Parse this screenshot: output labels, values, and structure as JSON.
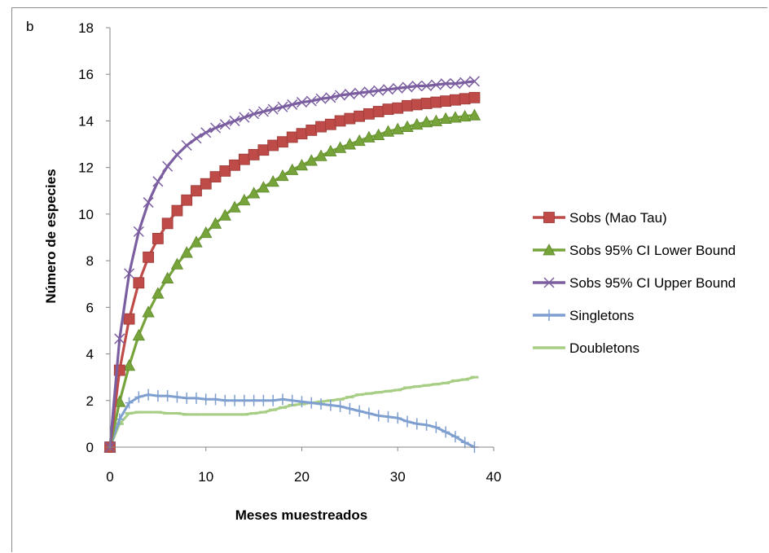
{
  "chart_data": {
    "type": "line",
    "panel_label": "b",
    "xlabel": "Meses muestreados",
    "ylabel": "Número de especies",
    "xlim": [
      0,
      40
    ],
    "ylim": [
      0,
      18
    ],
    "x_ticks": [
      "0",
      "10",
      "20",
      "30",
      "40"
    ],
    "y_ticks": [
      "0",
      "2",
      "4",
      "6",
      "8",
      "10",
      "12",
      "14",
      "16",
      "18"
    ],
    "grid": false,
    "legend_position": "right",
    "x": [
      0,
      1,
      2,
      3,
      4,
      5,
      6,
      7,
      8,
      9,
      10,
      11,
      12,
      13,
      14,
      15,
      16,
      17,
      18,
      19,
      20,
      21,
      22,
      23,
      24,
      25,
      26,
      27,
      28,
      29,
      30,
      31,
      32,
      33,
      34,
      35,
      36,
      37,
      38
    ],
    "series": [
      {
        "name": "Sobs (Mao Tau)",
        "color": "#be4b48",
        "marker": "square",
        "values": [
          0,
          3.3,
          5.5,
          7.05,
          8.15,
          8.95,
          9.6,
          10.15,
          10.6,
          11.0,
          11.3,
          11.6,
          11.85,
          12.1,
          12.35,
          12.55,
          12.75,
          12.95,
          13.1,
          13.3,
          13.45,
          13.6,
          13.75,
          13.85,
          14.0,
          14.1,
          14.2,
          14.3,
          14.4,
          14.5,
          14.55,
          14.65,
          14.7,
          14.75,
          14.8,
          14.85,
          14.9,
          14.95,
          15.0
        ]
      },
      {
        "name": "Sobs 95% CI Lower Bound",
        "color": "#77a33b",
        "marker": "triangle",
        "values": [
          0,
          1.95,
          3.5,
          4.8,
          5.8,
          6.6,
          7.25,
          7.85,
          8.35,
          8.8,
          9.2,
          9.6,
          9.95,
          10.3,
          10.6,
          10.9,
          11.15,
          11.4,
          11.65,
          11.9,
          12.1,
          12.3,
          12.5,
          12.7,
          12.85,
          13.0,
          13.15,
          13.3,
          13.4,
          13.55,
          13.65,
          13.75,
          13.85,
          13.95,
          14.0,
          14.1,
          14.15,
          14.2,
          14.25
        ]
      },
      {
        "name": "Sobs 95% CI Upper Bound",
        "color": "#7b5ea0",
        "marker": "x",
        "values": [
          0,
          4.65,
          7.45,
          9.25,
          10.5,
          11.4,
          12.05,
          12.55,
          12.95,
          13.25,
          13.5,
          13.7,
          13.85,
          14.0,
          14.15,
          14.3,
          14.4,
          14.5,
          14.6,
          14.7,
          14.8,
          14.85,
          14.95,
          15.0,
          15.1,
          15.15,
          15.2,
          15.25,
          15.3,
          15.35,
          15.4,
          15.45,
          15.5,
          15.5,
          15.55,
          15.6,
          15.6,
          15.65,
          15.7
        ]
      },
      {
        "name": "Singletons",
        "color": "#7e9fd0",
        "marker": "plus",
        "values": [
          0,
          1.2,
          1.9,
          2.15,
          2.25,
          2.2,
          2.2,
          2.15,
          2.1,
          2.1,
          2.05,
          2.05,
          2.0,
          2.0,
          2.0,
          2.0,
          2.0,
          2.0,
          2.05,
          2.0,
          1.95,
          1.9,
          1.85,
          1.8,
          1.75,
          1.65,
          1.55,
          1.45,
          1.35,
          1.3,
          1.25,
          1.1,
          1.0,
          0.95,
          0.85,
          0.65,
          0.45,
          0.2,
          0.0
        ]
      },
      {
        "name": "Doubletons",
        "color": "#a8cd84",
        "marker": "dash",
        "values": [
          0,
          1.0,
          1.45,
          1.5,
          1.5,
          1.5,
          1.45,
          1.45,
          1.4,
          1.4,
          1.4,
          1.4,
          1.4,
          1.4,
          1.4,
          1.45,
          1.5,
          1.6,
          1.7,
          1.8,
          1.85,
          1.9,
          1.95,
          2.0,
          2.05,
          2.15,
          2.25,
          2.3,
          2.35,
          2.4,
          2.45,
          2.55,
          2.6,
          2.65,
          2.7,
          2.75,
          2.85,
          2.9,
          3.0
        ]
      }
    ]
  }
}
